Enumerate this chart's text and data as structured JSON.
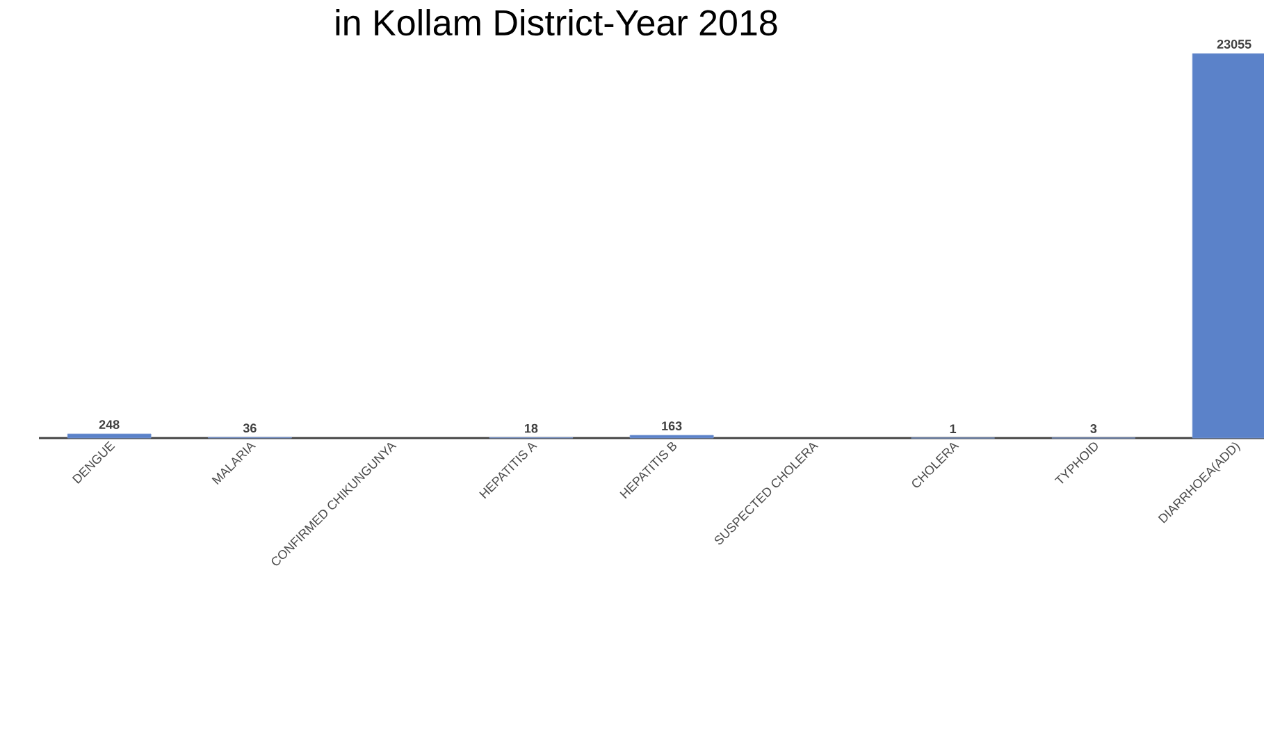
{
  "chart_data": {
    "type": "bar",
    "title": "in Kollam District-Year 2018",
    "categories": [
      "DENGUE",
      "MALARIA",
      "CONFIRMED CHIKUNGUNYA",
      "HEPATITIS A",
      "HEPATITIS B",
      "SUSPECTED CHOLERA",
      "CHOLERA",
      "TYPHOID",
      "DIARRHOEA(ADD)"
    ],
    "values": [
      248,
      36,
      null,
      18,
      163,
      null,
      1,
      3,
      23055
    ],
    "color": "#5b82c9",
    "tick_labels": "x",
    "data_labels": true
  }
}
